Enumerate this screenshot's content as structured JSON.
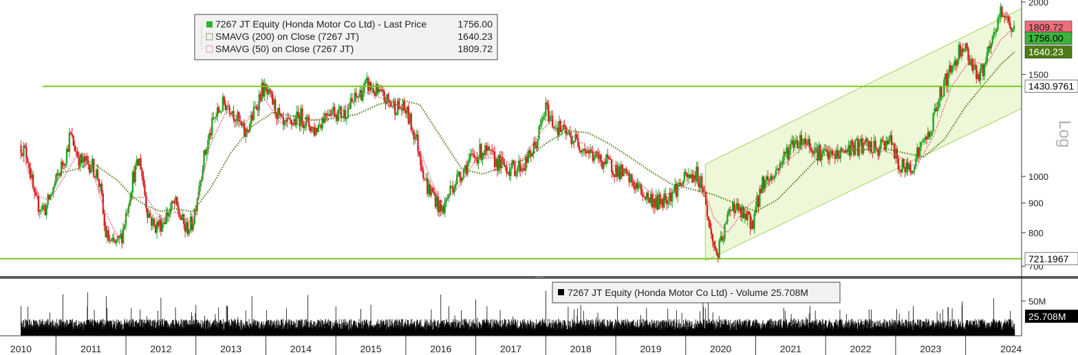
{
  "chart_data": {
    "type": "candlestick",
    "price_panel": {
      "legend": {
        "series": [
          {
            "name": "7267 JT Equity (Honda Motor Co Ltd) - Last Price",
            "value": "1756.00",
            "color": "#2db52d"
          },
          {
            "name": "SMAVG (200)  on Close (7267 JT)",
            "value": "1640.23",
            "color": "#4a7a0a"
          },
          {
            "name": "SMAVG (50)  on Close (7267 JT)",
            "value": "1809.72",
            "color": "#e0607a"
          }
        ]
      },
      "y_scale": "log",
      "y_scale_label": "Log",
      "y_ticks": [
        "2000",
        "1500",
        "1000",
        "900",
        "800",
        "700"
      ],
      "y_range": [
        690,
        2000
      ],
      "price_tags": [
        {
          "label": "1809.72",
          "value": 1809.72,
          "bg": "#f06e7a",
          "fg": "#222222"
        },
        {
          "label": "1756.00",
          "value": 1756.0,
          "bg": "#3cb43c",
          "fg": "#000000"
        },
        {
          "label": "1640.23",
          "value": 1640.23,
          "bg": "#4f7c12",
          "fg": "#ffffff"
        },
        {
          "label": "1430.9761",
          "value": 1430.9761,
          "bg": "#ffffff",
          "fg": "#000000"
        },
        {
          "label": "721.1967",
          "value": 721.1967,
          "bg": "#ffffff",
          "fg": "#000000"
        }
      ],
      "horizontal_lines": [
        1430.9761,
        721.1967
      ],
      "channel": {
        "start_year": 2019.78,
        "end_year": 2024.3,
        "upper": [
          1050,
          1950
        ],
        "lower": [
          715,
          1310
        ]
      },
      "price_path": [
        [
          2010.0,
          1130
        ],
        [
          2010.1,
          1080
        ],
        [
          2010.2,
          900
        ],
        [
          2010.35,
          880
        ],
        [
          2010.5,
          980
        ],
        [
          2010.65,
          1100
        ],
        [
          2010.7,
          1180
        ],
        [
          2010.85,
          1060
        ],
        [
          2011.0,
          1050
        ],
        [
          2011.1,
          1000
        ],
        [
          2011.15,
          920
        ],
        [
          2011.2,
          800
        ],
        [
          2011.3,
          760
        ],
        [
          2011.4,
          770
        ],
        [
          2011.45,
          800
        ],
        [
          2011.6,
          1000
        ],
        [
          2011.7,
          1070
        ],
        [
          2011.8,
          880
        ],
        [
          2011.9,
          820
        ],
        [
          2012.0,
          830
        ],
        [
          2012.2,
          900
        ],
        [
          2012.35,
          810
        ],
        [
          2012.45,
          830
        ],
        [
          2012.6,
          1060
        ],
        [
          2012.75,
          1250
        ],
        [
          2012.9,
          1340
        ],
        [
          2013.0,
          1320
        ],
        [
          2013.2,
          1180
        ],
        [
          2013.3,
          1260
        ],
        [
          2013.45,
          1420
        ],
        [
          2013.6,
          1340
        ],
        [
          2013.75,
          1210
        ],
        [
          2014.0,
          1270
        ],
        [
          2014.2,
          1200
        ],
        [
          2014.4,
          1310
        ],
        [
          2014.6,
          1280
        ],
        [
          2014.8,
          1370
        ],
        [
          2014.95,
          1440
        ],
        [
          2015.1,
          1390
        ],
        [
          2015.3,
          1330
        ],
        [
          2015.5,
          1300
        ],
        [
          2015.65,
          1160
        ],
        [
          2015.8,
          960
        ],
        [
          2015.9,
          930
        ],
        [
          2016.0,
          870
        ],
        [
          2016.05,
          890
        ],
        [
          2016.15,
          960
        ],
        [
          2016.4,
          1060
        ],
        [
          2016.6,
          1110
        ],
        [
          2016.8,
          1060
        ],
        [
          2017.0,
          1030
        ],
        [
          2017.2,
          1050
        ],
        [
          2017.35,
          1130
        ],
        [
          2017.5,
          1310
        ],
        [
          2017.6,
          1240
        ],
        [
          2017.8,
          1180
        ],
        [
          2017.95,
          1150
        ],
        [
          2018.2,
          1080
        ],
        [
          2018.4,
          1050
        ],
        [
          2018.6,
          1010
        ],
        [
          2018.8,
          960
        ],
        [
          2018.95,
          920
        ],
        [
          2019.1,
          900
        ],
        [
          2019.3,
          940
        ],
        [
          2019.5,
          990
        ],
        [
          2019.65,
          1010
        ],
        [
          2019.75,
          960
        ],
        [
          2019.85,
          800
        ],
        [
          2019.95,
          730
        ],
        [
          2020.05,
          800
        ],
        [
          2020.15,
          900
        ],
        [
          2020.3,
          860
        ],
        [
          2020.45,
          830
        ],
        [
          2020.6,
          980
        ],
        [
          2020.75,
          1000
        ],
        [
          2020.9,
          1080
        ],
        [
          2021.05,
          1150
        ],
        [
          2021.2,
          1160
        ],
        [
          2021.4,
          1100
        ],
        [
          2021.6,
          1080
        ],
        [
          2021.85,
          1120
        ],
        [
          2022.05,
          1130
        ],
        [
          2022.25,
          1110
        ],
        [
          2022.4,
          1170
        ],
        [
          2022.55,
          1040
        ],
        [
          2022.7,
          1030
        ],
        [
          2022.85,
          1120
        ],
        [
          2023.0,
          1200
        ],
        [
          2023.1,
          1350
        ],
        [
          2023.2,
          1450
        ],
        [
          2023.35,
          1580
        ],
        [
          2023.45,
          1700
        ],
        [
          2023.55,
          1610
        ],
        [
          2023.7,
          1480
        ],
        [
          2023.85,
          1650
        ],
        [
          2024.0,
          1920
        ],
        [
          2024.1,
          1880
        ],
        [
          2024.2,
          1756
        ]
      ],
      "sma50_path": [
        [
          2010.0,
          1120
        ],
        [
          2010.2,
          930
        ],
        [
          2010.4,
          910
        ],
        [
          2010.6,
          990
        ],
        [
          2010.8,
          1090
        ],
        [
          2011.0,
          1040
        ],
        [
          2011.2,
          870
        ],
        [
          2011.4,
          780
        ],
        [
          2011.6,
          920
        ],
        [
          2011.8,
          920
        ],
        [
          2012.0,
          840
        ],
        [
          2012.2,
          870
        ],
        [
          2012.45,
          830
        ],
        [
          2012.7,
          1130
        ],
        [
          2012.95,
          1310
        ],
        [
          2013.2,
          1230
        ],
        [
          2013.45,
          1380
        ],
        [
          2013.7,
          1240
        ],
        [
          2014.0,
          1240
        ],
        [
          2014.3,
          1260
        ],
        [
          2014.6,
          1300
        ],
        [
          2014.9,
          1400
        ],
        [
          2015.2,
          1360
        ],
        [
          2015.5,
          1310
        ],
        [
          2015.8,
          1030
        ],
        [
          2016.0,
          900
        ],
        [
          2016.2,
          940
        ],
        [
          2016.5,
          1070
        ],
        [
          2016.8,
          1080
        ],
        [
          2017.1,
          1040
        ],
        [
          2017.4,
          1180
        ],
        [
          2017.6,
          1260
        ],
        [
          2017.9,
          1170
        ],
        [
          2018.2,
          1100
        ],
        [
          2018.5,
          1040
        ],
        [
          2018.8,
          980
        ],
        [
          2019.1,
          920
        ],
        [
          2019.4,
          950
        ],
        [
          2019.7,
          1000
        ],
        [
          2019.9,
          850
        ],
        [
          2020.1,
          800
        ],
        [
          2020.35,
          880
        ],
        [
          2020.6,
          940
        ],
        [
          2020.9,
          1050
        ],
        [
          2021.2,
          1130
        ],
        [
          2021.5,
          1110
        ],
        [
          2021.85,
          1110
        ],
        [
          2022.2,
          1120
        ],
        [
          2022.5,
          1090
        ],
        [
          2022.8,
          1040
        ],
        [
          2023.05,
          1180
        ],
        [
          2023.3,
          1430
        ],
        [
          2023.55,
          1580
        ],
        [
          2023.8,
          1560
        ],
        [
          2024.0,
          1720
        ],
        [
          2024.2,
          1809.72
        ]
      ],
      "sma200_path": [
        [
          2010.5,
          1010
        ],
        [
          2010.8,
          1030
        ],
        [
          2011.0,
          1060
        ],
        [
          2011.2,
          1020
        ],
        [
          2011.4,
          980
        ],
        [
          2011.6,
          920
        ],
        [
          2011.8,
          890
        ],
        [
          2012.0,
          870
        ],
        [
          2012.2,
          880
        ],
        [
          2012.45,
          870
        ],
        [
          2012.7,
          950
        ],
        [
          2013.0,
          1100
        ],
        [
          2013.3,
          1220
        ],
        [
          2013.6,
          1290
        ],
        [
          2013.9,
          1270
        ],
        [
          2014.2,
          1250
        ],
        [
          2014.5,
          1260
        ],
        [
          2014.8,
          1280
        ],
        [
          2015.1,
          1330
        ],
        [
          2015.4,
          1360
        ],
        [
          2015.7,
          1330
        ],
        [
          2016.0,
          1170
        ],
        [
          2016.3,
          1030
        ],
        [
          2016.6,
          1010
        ],
        [
          2016.9,
          1040
        ],
        [
          2017.2,
          1070
        ],
        [
          2017.5,
          1140
        ],
        [
          2017.8,
          1200
        ],
        [
          2018.1,
          1190
        ],
        [
          2018.4,
          1140
        ],
        [
          2018.7,
          1080
        ],
        [
          2019.0,
          1020
        ],
        [
          2019.3,
          970
        ],
        [
          2019.6,
          950
        ],
        [
          2019.9,
          930
        ],
        [
          2020.2,
          900
        ],
        [
          2020.5,
          870
        ],
        [
          2020.8,
          910
        ],
        [
          2021.1,
          990
        ],
        [
          2021.4,
          1080
        ],
        [
          2021.7,
          1110
        ],
        [
          2022.0,
          1110
        ],
        [
          2022.3,
          1120
        ],
        [
          2022.6,
          1100
        ],
        [
          2022.9,
          1080
        ],
        [
          2023.2,
          1160
        ],
        [
          2023.5,
          1320
        ],
        [
          2023.8,
          1460
        ],
        [
          2024.0,
          1560
        ],
        [
          2024.2,
          1640.23
        ]
      ]
    },
    "volume_panel": {
      "legend": "7267 JT Equity (Honda Motor Co Ltd) - Volume 25.708M",
      "y_ticks": [
        "50M"
      ],
      "last_value_label": "25.708M",
      "y_max_millions": 80,
      "volume_baseline_millions": 18,
      "spike_years": [
        2010.0,
        2010.1,
        2010.6,
        2010.95,
        2011.22,
        2012.0,
        2012.5,
        2012.95,
        2013.3,
        2014.1,
        2015.0,
        2016.0,
        2016.5,
        2017.5,
        2018.0,
        2019.75,
        2019.82,
        2023.25,
        2023.45,
        2023.9
      ]
    },
    "x_axis": {
      "tick_labels": [
        "2010",
        "2011",
        "2012",
        "2013",
        "2014",
        "2015",
        "2016",
        "2017",
        "2018",
        "2019",
        "2020",
        "2021",
        "2022",
        "2023",
        "2024"
      ],
      "start_year": 2009.7,
      "end_year": 2024.3
    },
    "colors": {
      "up_candle": "#1fa51f",
      "down_candle": "#d81f1f",
      "reference_line": "#7ac81e",
      "channel_fill": "#eef8d9",
      "channel_line": "#9ad65a",
      "panel_separator": "#5a5a5a"
    }
  }
}
